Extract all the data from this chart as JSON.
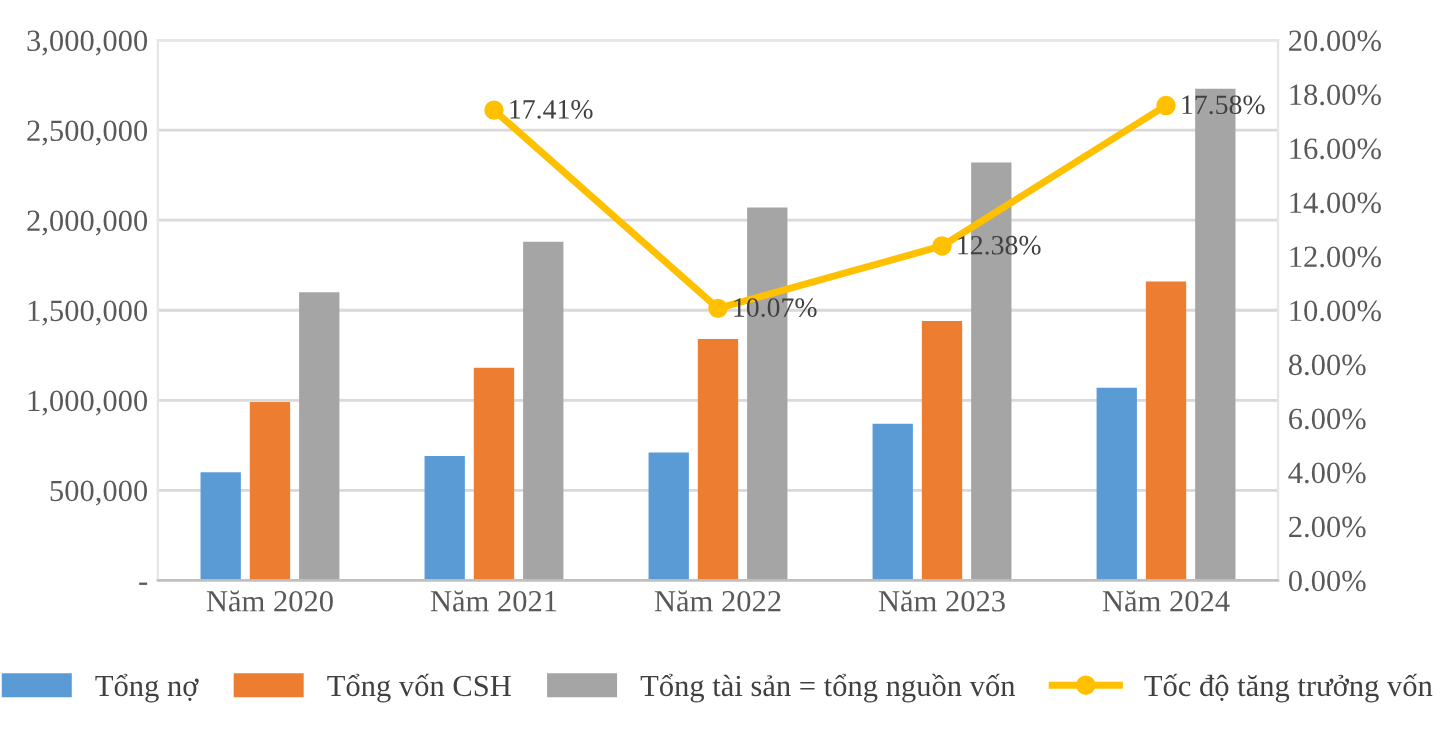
{
  "chart_data": {
    "type": "bar",
    "categories": [
      "Năm 2020",
      "Năm 2021",
      "Năm 2022",
      "Năm 2023",
      "Năm 2024"
    ],
    "series": [
      {
        "name": "Tổng nợ",
        "color": "#5b9bd5",
        "values": [
          600000,
          690000,
          710000,
          870000,
          1070000
        ]
      },
      {
        "name": "Tổng vốn CSH",
        "color": "#ed7d31",
        "values": [
          990000,
          1180000,
          1340000,
          1440000,
          1660000
        ]
      },
      {
        "name": "Tổng tài sản = tổng nguồn vốn",
        "color": "#a5a5a5",
        "values": [
          1600000,
          1880000,
          2070000,
          2320000,
          2730000
        ]
      },
      {
        "name": "Tốc độ tăng trưởng vốn",
        "color": "#ffc000",
        "type": "line",
        "axis": "y2",
        "marker": "circle",
        "values": [
          null,
          17.41,
          10.07,
          12.38,
          17.58
        ],
        "value_labels": [
          null,
          "17.41%",
          "10.07%",
          "12.38%",
          "17.58%"
        ]
      }
    ],
    "ylim": [
      0,
      3000000
    ],
    "yticks": [
      {
        "value": 0,
        "label": "-"
      },
      {
        "value": 500000,
        "label": "500,000"
      },
      {
        "value": 1000000,
        "label": "1,000,000"
      },
      {
        "value": 1500000,
        "label": "1,500,000"
      },
      {
        "value": 2000000,
        "label": "2,000,000"
      },
      {
        "value": 2500000,
        "label": "2,500,000"
      },
      {
        "value": 3000000,
        "label": "3,000,000"
      }
    ],
    "y2lim": [
      0,
      20
    ],
    "y2ticks": [
      {
        "value": 0,
        "label": "0.00%"
      },
      {
        "value": 2,
        "label": "2.00%"
      },
      {
        "value": 4,
        "label": "4.00%"
      },
      {
        "value": 6,
        "label": "6.00%"
      },
      {
        "value": 8,
        "label": "8.00%"
      },
      {
        "value": 10,
        "label": "10.00%"
      },
      {
        "value": 12,
        "label": "12.00%"
      },
      {
        "value": 14,
        "label": "14.00%"
      },
      {
        "value": 16,
        "label": "16.00%"
      },
      {
        "value": 18,
        "label": "18.00%"
      },
      {
        "value": 20,
        "label": "20.00%"
      }
    ],
    "grid": "y",
    "legend": "bottom"
  }
}
